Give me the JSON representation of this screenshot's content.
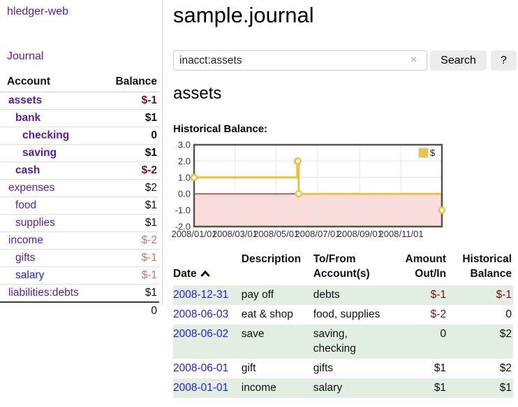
{
  "app": {
    "title": "hledger-web",
    "nav_journal": "Journal"
  },
  "sidebar": {
    "accounts_table": {
      "header_account": "Account",
      "header_balance": "Balance",
      "rows": [
        {
          "name": "assets",
          "balance": "$-1",
          "indent": 1,
          "bold": true,
          "name_style": "purple",
          "balance_style": "neg"
        },
        {
          "name": "bank",
          "balance": "$1",
          "indent": 2,
          "bold": true,
          "name_style": "purple",
          "balance_style": "pos"
        },
        {
          "name": "checking",
          "balance": "0",
          "indent": 3,
          "bold": true,
          "name_style": "purple",
          "balance_style": "pos"
        },
        {
          "name": "saving",
          "balance": "$1",
          "indent": 3,
          "bold": true,
          "name_style": "purple",
          "balance_style": "pos"
        },
        {
          "name": "cash",
          "balance": "$-2",
          "indent": 2,
          "bold": true,
          "name_style": "purple",
          "balance_style": "neg"
        },
        {
          "name": "expenses",
          "balance": "$2",
          "indent": 1,
          "bold": false,
          "name_style": "purple",
          "balance_style": "pos"
        },
        {
          "name": "food",
          "balance": "$1",
          "indent": 2,
          "bold": false,
          "name_style": "purple",
          "balance_style": "pos"
        },
        {
          "name": "supplies",
          "balance": "$1",
          "indent": 2,
          "bold": false,
          "name_style": "purple",
          "balance_style": "pos"
        },
        {
          "name": "income",
          "balance": "$-2",
          "indent": 1,
          "bold": false,
          "name_style": "purple",
          "balance_style": "neg-soft"
        },
        {
          "name": "gifts",
          "balance": "$-1",
          "indent": 2,
          "bold": false,
          "name_style": "purple",
          "balance_style": "neg-soft"
        },
        {
          "name": "salary",
          "balance": "$-1",
          "indent": 2,
          "bold": false,
          "name_style": "blue",
          "balance_style": "neg-soft"
        },
        {
          "name": "liabilities:debts",
          "balance": "$1",
          "indent": 1,
          "bold": false,
          "name_style": "purple",
          "balance_style": "pos"
        }
      ],
      "total": "0"
    }
  },
  "main": {
    "title": "sample.journal",
    "search": {
      "value": "inacct:assets",
      "clear_label": "×",
      "button": "Search",
      "help": "?"
    },
    "heading": "assets",
    "chart_label": "Historical Balance:",
    "register": {
      "headers": {
        "date": "Date",
        "description": "Description",
        "accounts": "To/From\nAccount(s)",
        "amount": "Amount\nOut/In",
        "balance": "Historical\nBalance"
      },
      "sort_icon": "chevron-up",
      "rows": [
        {
          "date": "2008-12-31",
          "description": "pay off",
          "accounts": "debts",
          "amount": "$-1",
          "balance": "$-1",
          "amount_neg": true,
          "balance_neg": true,
          "shaded": true
        },
        {
          "date": "2008-06-03",
          "description": "eat & shop",
          "accounts": "food, supplies",
          "amount": "$-2",
          "balance": "0",
          "amount_neg": true,
          "balance_neg": false,
          "shaded": false
        },
        {
          "date": "2008-06-02",
          "description": "save",
          "accounts": "saving,\nchecking",
          "amount": "0",
          "balance": "$2",
          "amount_neg": false,
          "balance_neg": false,
          "shaded": true
        },
        {
          "date": "2008-06-01",
          "description": "gift",
          "accounts": "gifts",
          "amount": "$1",
          "balance": "$2",
          "amount_neg": false,
          "balance_neg": false,
          "shaded": false
        },
        {
          "date": "2008-01-01",
          "description": "income",
          "accounts": "salary",
          "amount": "$1",
          "balance": "$1",
          "amount_neg": false,
          "balance_neg": false,
          "shaded": true
        }
      ]
    }
  },
  "chart_data": {
    "type": "line",
    "step": true,
    "title": "Historical Balance",
    "x_type": "date",
    "x_range": [
      "2008-01-01",
      "2008-12-31"
    ],
    "ylim": [
      -2,
      3
    ],
    "yticks": [
      "3.0",
      "2.0",
      "1.0",
      "0.0",
      "-1.0",
      "-2.0"
    ],
    "xtick_labels": [
      "2008/01/01",
      "2008/03/01",
      "2008/05/01",
      "2008/07/01",
      "2008/09/01",
      "2008/11/01"
    ],
    "xtick_dates": [
      "2008-01-01",
      "2008-03-01",
      "2008-05-01",
      "2008-07-01",
      "2008-09-01",
      "2008-11-01"
    ],
    "series": [
      {
        "name": "$",
        "color": "#edc240",
        "points": [
          {
            "date": "2008-01-01",
            "value": 1
          },
          {
            "date": "2008-06-01",
            "value": 2
          },
          {
            "date": "2008-06-02",
            "value": 2
          },
          {
            "date": "2008-06-03",
            "value": 0
          },
          {
            "date": "2008-12-31",
            "value": -1
          }
        ]
      }
    ],
    "legend": {
      "position": "top-right",
      "label": "$"
    },
    "zero_line_color": "#8b0000",
    "negative_fill": "#fbdcdc",
    "grid_color": "#e4e4e4",
    "border_color": "#545454",
    "grid": true
  },
  "colors": {
    "link_purple": "#561d9e",
    "link_blue": "#2222dd",
    "negative_strong": "#7d1111",
    "negative_soft": "#c27676",
    "row_stripe": "#e3eee3",
    "series_gold": "#edc240",
    "button_bg": "#ececec"
  }
}
